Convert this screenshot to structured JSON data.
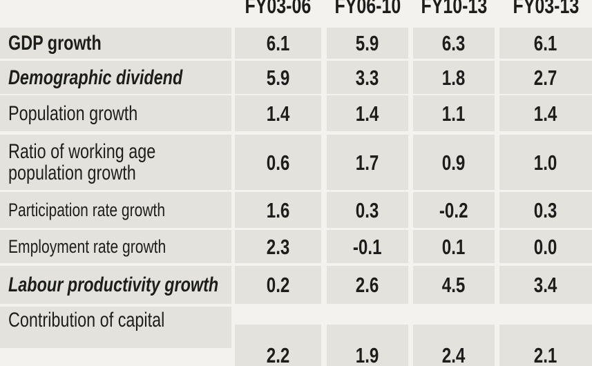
{
  "chart_data": {
    "type": "table",
    "columns": [
      "FY03-06",
      "FY06-10",
      "FY10-13",
      "FY03-13"
    ],
    "rows": [
      {
        "label": [
          "GDP growth"
        ],
        "style": "bold",
        "values": [
          "6.1",
          "5.9",
          "6.3",
          "6.1"
        ]
      },
      {
        "label": [
          "Demographic dividend"
        ],
        "style": "bold-italic",
        "values": [
          "5.9",
          "3.3",
          "1.8",
          "2.7"
        ]
      },
      {
        "label": [
          "Population growth"
        ],
        "style": "normal",
        "values": [
          "1.4",
          "1.4",
          "1.1",
          "1.4"
        ]
      },
      {
        "label": [
          "Ratio of working age",
          "population growth"
        ],
        "style": "normal",
        "values": [
          "0.6",
          "1.7",
          "0.9",
          "1.0"
        ]
      },
      {
        "label": [
          "Participation rate growth"
        ],
        "style": "normal-small",
        "values": [
          "1.6",
          "0.3",
          "-0.2",
          "0.3"
        ]
      },
      {
        "label": [
          "Employment rate growth"
        ],
        "style": "normal-small",
        "values": [
          "2.3",
          "-0.1",
          "0.1",
          "0.0"
        ]
      },
      {
        "label": [
          "Labour productivity growth"
        ],
        "style": "bold-italic",
        "values": [
          "0.2",
          "2.6",
          "4.5",
          "3.4"
        ]
      },
      {
        "label": [
          "Contribution of capital"
        ],
        "style": "normal",
        "values": [
          "2.2",
          "1.9",
          "2.4",
          "2.1"
        ]
      }
    ],
    "colors": {
      "cell": "#e4e2dd",
      "background": "#f4f2ee",
      "text": "#1d1d1b"
    }
  }
}
